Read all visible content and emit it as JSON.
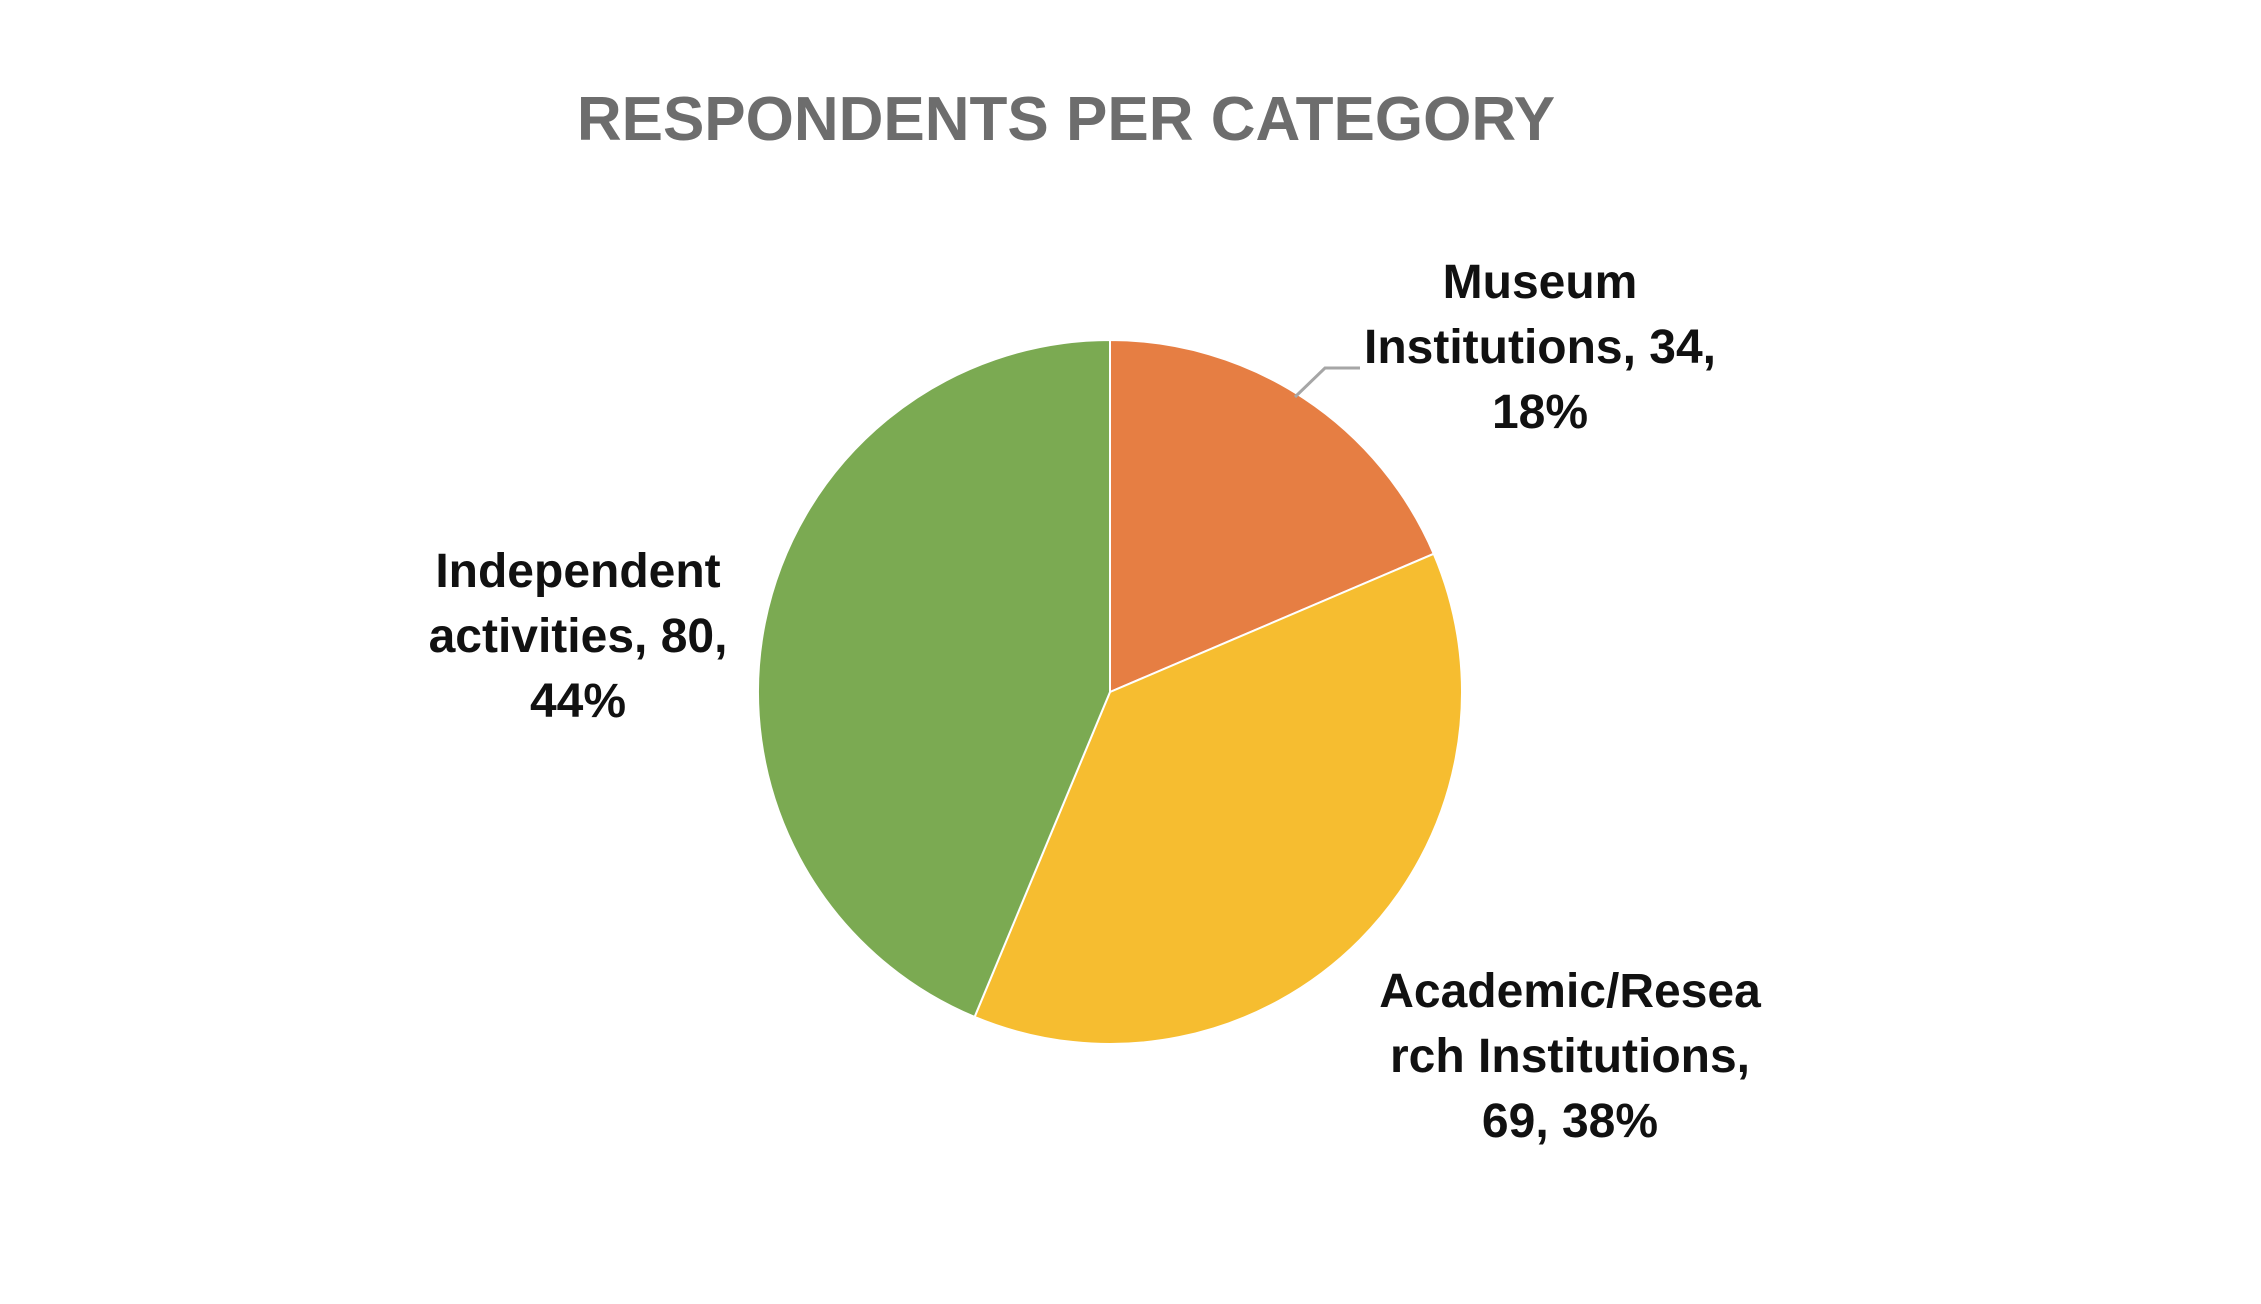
{
  "chart_data": {
    "type": "pie",
    "title": "RESPONDENTS PER CATEGORY",
    "categories": [
      "Museum Institutions",
      "Academic/Research Institutions",
      "Independent activities"
    ],
    "values": [
      34,
      69,
      80
    ],
    "percentages": [
      18,
      38,
      44
    ],
    "colors": [
      "#E67E43",
      "#F6BD30",
      "#7BAA52"
    ],
    "title_color": "#6D6D6D",
    "label_color": "#111111",
    "legend": "none",
    "data_labels": [
      [
        "Museum",
        "Institutions, 34,",
        "18%"
      ],
      [
        "Academic/Resea",
        "rch Institutions,",
        "69, 38%"
      ],
      [
        "Independent",
        "activities, 80,",
        "44%"
      ]
    ]
  }
}
